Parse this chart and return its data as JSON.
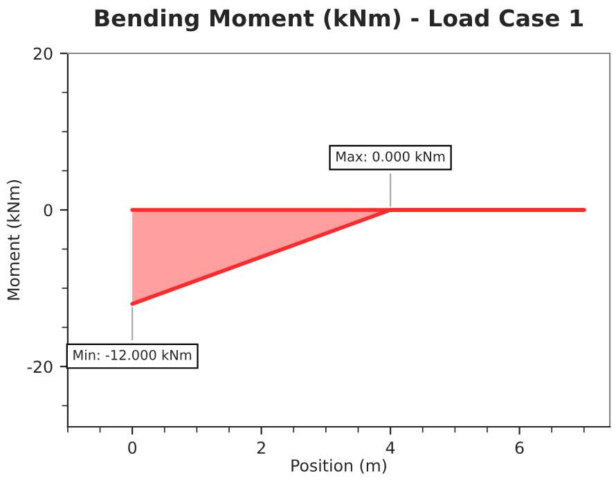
{
  "chart_data": {
    "type": "area",
    "title": "Bending Moment (kNm) - Load Case 1",
    "xlabel": "Position (m)",
    "ylabel": "Moment (kNm)",
    "x": [
      0,
      4,
      7
    ],
    "series": [
      {
        "color": "#ff2a2a",
        "values": [
          -12,
          0,
          0
        ]
      },
      {
        "type": "line",
        "color": "#ff2a2a",
        "x": [
          0,
          7
        ],
        "values": [
          0,
          0
        ]
      }
    ],
    "xlim": [
      -1,
      7.4
    ],
    "ylim": [
      -27.7,
      20
    ],
    "xticks": [
      0,
      2,
      4,
      6
    ],
    "yticks": [
      -20,
      0,
      20
    ],
    "grid": false,
    "annotations": [
      {
        "text": "Max: 0.000 kNm",
        "x": 4,
        "y": 0
      },
      {
        "text": "Min: -12.000 kNm",
        "x": 0,
        "y": -12
      }
    ]
  }
}
